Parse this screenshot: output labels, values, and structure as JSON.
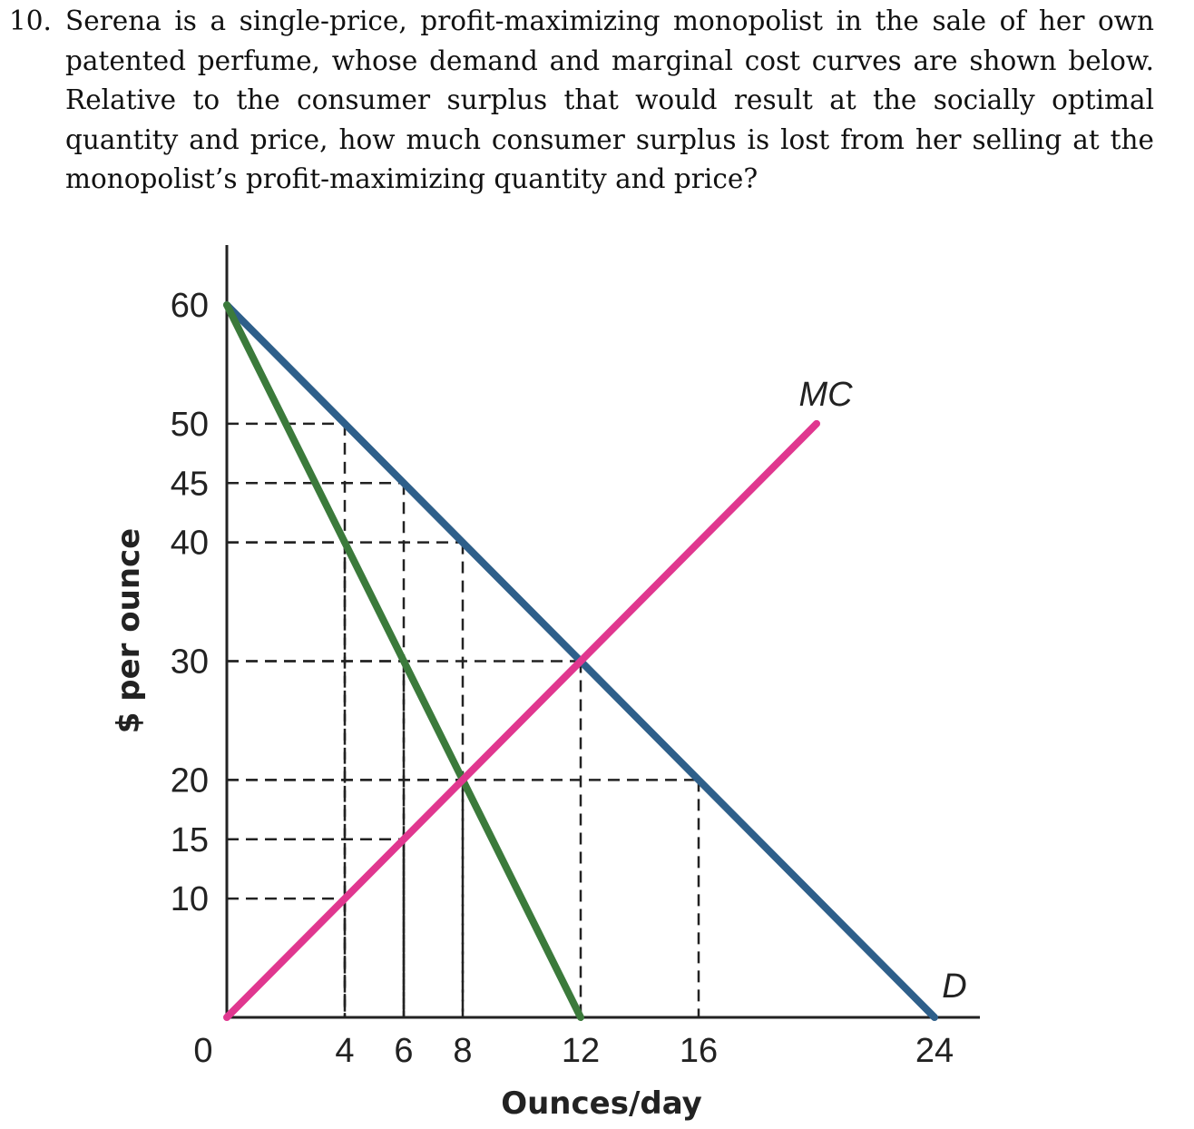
{
  "question": {
    "number": "10.",
    "text": "Serena is a single-price, profit-maximizing monopolist in the sale of her own patented perfume, whose demand and marginal cost curves are shown below. Relative to the consumer surplus that would result at the socially optimal quantity and price, how much consumer surplus is lost from her selling at the monopolist’s profit-maximizing quantity and price?"
  },
  "chart_data": {
    "type": "line",
    "xlabel": "Ounces/day",
    "ylabel": "$ per ounce",
    "xlim": [
      0,
      24
    ],
    "ylim": [
      0,
      60
    ],
    "x_ticks": [
      0,
      4,
      6,
      8,
      12,
      16,
      24
    ],
    "y_ticks": [
      10,
      15,
      20,
      30,
      40,
      45,
      50,
      60
    ],
    "grid": "dashed guide lines to points on curves",
    "series": [
      {
        "name": "D",
        "color": "#2e5f8a",
        "points": [
          [
            0,
            60
          ],
          [
            24,
            0
          ]
        ]
      },
      {
        "name": "",
        "color": "#3b7a3b",
        "points": [
          [
            0,
            60
          ],
          [
            12,
            0
          ]
        ]
      },
      {
        "name": "MC",
        "color": "#e0378f",
        "points": [
          [
            0,
            0
          ],
          [
            20,
            50
          ]
        ]
      }
    ],
    "guides": [
      {
        "x": 4,
        "y": 50
      },
      {
        "x": 4,
        "y": 40
      },
      {
        "x": 4,
        "y": 10
      },
      {
        "x": 6,
        "y": 45
      },
      {
        "x": 6,
        "y": 30
      },
      {
        "x": 6,
        "y": 15
      },
      {
        "x": 8,
        "y": 40
      },
      {
        "x": 8,
        "y": 20
      },
      {
        "x": 12,
        "y": 30
      },
      {
        "x": 16,
        "y": 20
      }
    ]
  }
}
